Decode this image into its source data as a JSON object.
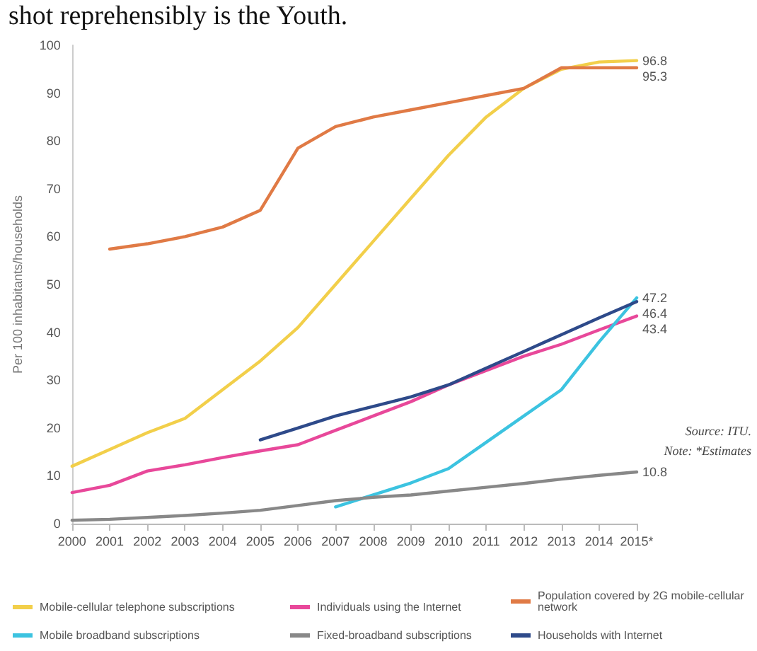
{
  "chart_data": {
    "type": "line",
    "ylabel": "Per 100 inhabitants/households",
    "annotations": [
      "shot reprehensibly is the Youth.",
      "Source: ITU.",
      "Note: *Estimates"
    ],
    "categories": [
      "2000",
      "2001",
      "2002",
      "2003",
      "2004",
      "2005",
      "2006",
      "2007",
      "2008",
      "2009",
      "2010",
      "2011",
      "2012",
      "2013",
      "2014",
      "2015*"
    ],
    "ylim": [
      0,
      100
    ],
    "yticks": [
      0,
      10,
      20,
      30,
      40,
      50,
      60,
      70,
      80,
      90,
      100
    ],
    "grid": false,
    "legend": "bottom",
    "marker": "none",
    "line_style": "solid",
    "series": [
      {
        "name": "Mobile-cellular telephone subscriptions",
        "color": "#f2cf4a",
        "values": [
          12,
          15.5,
          19,
          22,
          28,
          34,
          41,
          50,
          59,
          68,
          77,
          85,
          91,
          95,
          96.5,
          96.8
        ],
        "value_labels": [
          null,
          null,
          null,
          null,
          null,
          null,
          null,
          null,
          null,
          null,
          null,
          null,
          null,
          null,
          null,
          "96.8"
        ]
      },
      {
        "name": "Individuals using the Internet",
        "color": "#e8489a",
        "values": [
          6.5,
          8,
          11,
          12.3,
          13.8,
          15.2,
          16.5,
          19.5,
          22.5,
          25.5,
          29,
          32,
          35,
          37.5,
          40.5,
          43.4
        ],
        "value_labels": [
          null,
          null,
          null,
          null,
          null,
          null,
          null,
          null,
          null,
          null,
          null,
          null,
          null,
          null,
          null,
          "43.4"
        ]
      },
      {
        "name": "Population covered by 2G mobile-cellular network",
        "color": "#e07a45",
        "values": [
          null,
          57.4,
          58.5,
          60,
          62,
          65.5,
          78.5,
          83,
          85,
          86.5,
          88,
          89.5,
          91,
          95.3,
          95.3,
          95.3
        ],
        "value_labels": [
          null,
          null,
          null,
          null,
          null,
          null,
          null,
          null,
          null,
          null,
          null,
          null,
          null,
          null,
          null,
          "95.3"
        ]
      },
      {
        "name": "Mobile broadband subscriptions",
        "color": "#3cc3e0",
        "values": [
          null,
          null,
          null,
          null,
          null,
          null,
          null,
          3.5,
          6,
          8.5,
          11.5,
          17,
          22.5,
          28,
          38,
          47.2
        ],
        "value_labels": [
          null,
          null,
          null,
          null,
          null,
          null,
          null,
          null,
          null,
          null,
          null,
          null,
          null,
          null,
          null,
          "47.2"
        ]
      },
      {
        "name": "Fixed-broadband subscriptions",
        "color": "#888888",
        "values": [
          0.7,
          0.9,
          1.3,
          1.7,
          2.2,
          2.8,
          3.8,
          4.8,
          5.5,
          6,
          6.8,
          7.6,
          8.4,
          9.3,
          10.1,
          10.8
        ],
        "value_labels": [
          null,
          null,
          null,
          null,
          null,
          null,
          null,
          null,
          null,
          null,
          null,
          null,
          null,
          null,
          null,
          "10.8"
        ]
      },
      {
        "name": "Households with Internet",
        "color": "#2e4a8a",
        "values": [
          null,
          null,
          null,
          null,
          null,
          17.5,
          20,
          22.5,
          24.5,
          26.5,
          29,
          32.5,
          36,
          39.5,
          43,
          46.4
        ],
        "value_labels": [
          null,
          null,
          null,
          null,
          null,
          null,
          null,
          null,
          null,
          null,
          null,
          null,
          null,
          null,
          null,
          "46.4"
        ]
      }
    ]
  }
}
